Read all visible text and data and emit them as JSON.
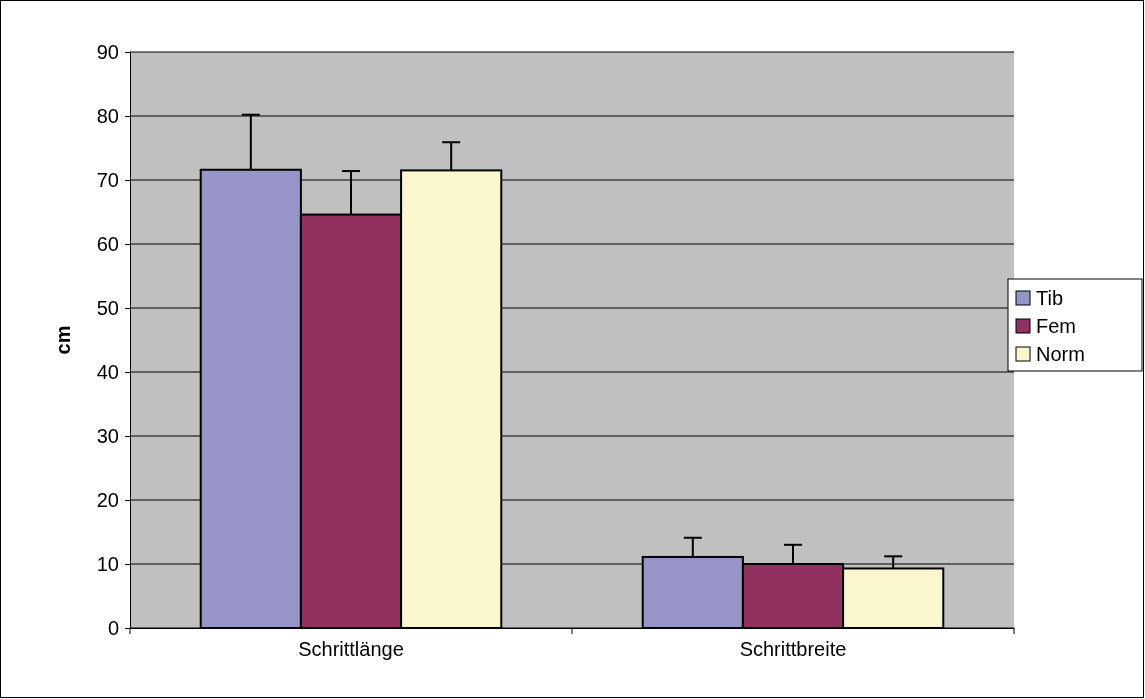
{
  "chart_data": {
    "type": "bar",
    "ylabel": "cm",
    "categories": [
      "Schrittlänge",
      "Schrittbreite"
    ],
    "series": [
      {
        "name": "Tib",
        "color": "#9794c8",
        "values": [
          71.6,
          11.1
        ],
        "errors": [
          [
            71.6,
            80.2
          ],
          [
            11.1,
            14.1
          ]
        ]
      },
      {
        "name": "Fem",
        "color": "#913160",
        "values": [
          64.6,
          10.0
        ],
        "errors": [
          [
            64.6,
            71.4
          ],
          [
            10.0,
            13.0
          ]
        ]
      },
      {
        "name": "Norm",
        "color": "#faf7cf",
        "values": [
          71.5,
          9.3
        ],
        "errors": [
          [
            71.5,
            75.9
          ],
          [
            9.3,
            11.2
          ]
        ]
      }
    ],
    "ylim": [
      0,
      90
    ],
    "yticks": [
      0,
      10,
      20,
      30,
      40,
      50,
      60,
      70,
      80,
      90
    ],
    "grid": "y",
    "legend": "right"
  }
}
